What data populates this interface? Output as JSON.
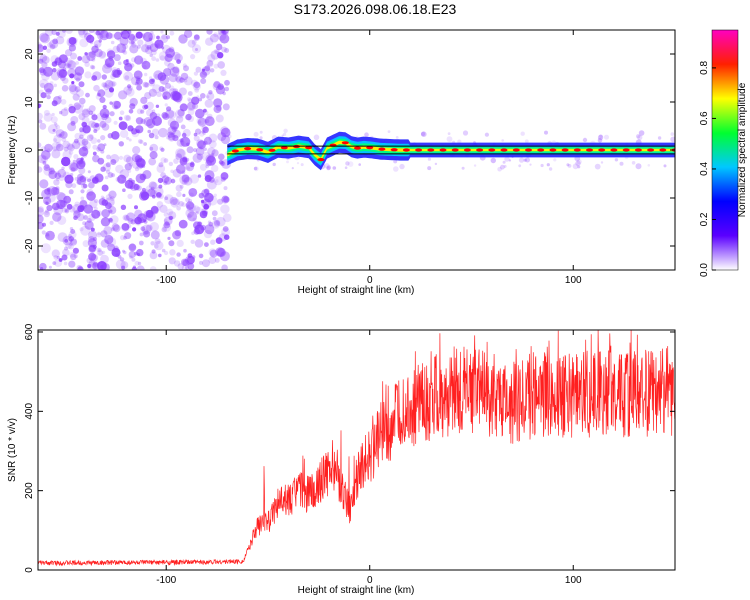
{
  "title": "S173.2026.098.06.18.E23",
  "chart_data": [
    {
      "type": "heatmap",
      "xlabel": "Height of straight line (km)",
      "ylabel": "Frequency (Hz)",
      "xlim": [
        -163,
        150
      ],
      "ylim": [
        -25,
        25
      ],
      "xticks": [
        -100,
        0,
        100
      ],
      "yticks": [
        -20,
        -10,
        0,
        10,
        20
      ],
      "noise_region_x": [
        -163,
        -70
      ],
      "ridge": {
        "x": [
          -70,
          -65,
          -60,
          -55,
          -50,
          -45,
          -40,
          -35,
          -30,
          -27,
          -24,
          -21,
          -18,
          -15,
          -12,
          -9,
          -6,
          -3,
          0,
          5,
          10,
          15,
          20,
          30,
          50,
          80,
          110,
          150
        ],
        "freq_hz": [
          -1,
          0,
          0.3,
          0.2,
          -0.5,
          0.6,
          0.4,
          0.8,
          0.5,
          -1,
          -2,
          0.4,
          1,
          1.6,
          1.5,
          0.7,
          0.4,
          0.6,
          0.5,
          0.2,
          0.1,
          0,
          0,
          0,
          0,
          0,
          0,
          0
        ]
      },
      "colorbar": {
        "label": "Normalized spectral amplitude",
        "range": [
          0,
          0.95
        ],
        "ticks": [
          "0.0",
          "0.2",
          "0.4",
          "0.6",
          "0.8"
        ],
        "tick_values": [
          0,
          0.2,
          0.4,
          0.6,
          0.8
        ],
        "colors": [
          "#ffffff",
          "#5a00ff",
          "#0000ff",
          "#00c8ff",
          "#00ff30",
          "#ffff00",
          "#ff2000",
          "#ff00c0"
        ]
      },
      "colors": {
        "ridge_core": "#ff0000",
        "ridge_mid": "#00ff80",
        "ridge_outer": "#2020ff",
        "noise": "#8a3cff",
        "line": "#000000"
      }
    },
    {
      "type": "line",
      "xlabel": "Height of straight line (km)",
      "ylabel": "SNR (10 * v/v)",
      "xlim": [
        -163,
        150
      ],
      "ylim": [
        0,
        605
      ],
      "xticks": [
        -100,
        0,
        100
      ],
      "yticks": [
        0,
        200,
        400,
        600
      ],
      "series": [
        {
          "name": "SNR",
          "color": "#ff2020",
          "x": [
            -163,
            -140,
            -120,
            -100,
            -80,
            -62,
            -60,
            -55,
            -50,
            -45,
            -40,
            -35,
            -30,
            -25,
            -20,
            -15,
            -10,
            -5,
            0,
            5,
            10,
            15,
            20,
            25,
            30,
            40,
            50,
            60,
            70,
            80,
            100,
            120,
            150
          ],
          "y": [
            18,
            18,
            19,
            19,
            20,
            22,
            50,
            110,
            120,
            170,
            175,
            200,
            190,
            220,
            250,
            230,
            150,
            260,
            290,
            330,
            360,
            390,
            410,
            420,
            430,
            450,
            455,
            440,
            420,
            440,
            445,
            445,
            450
          ]
        }
      ]
    }
  ]
}
